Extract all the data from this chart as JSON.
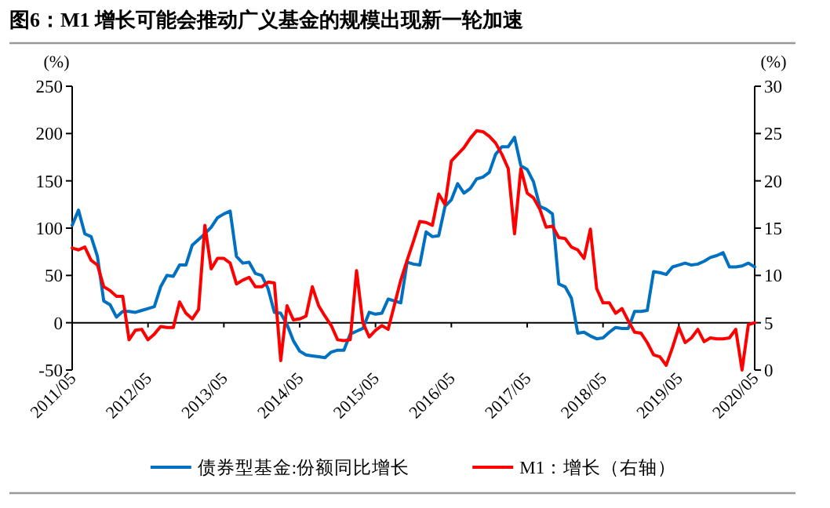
{
  "chart_data": {
    "type": "line",
    "title": "图6：M1 增长可能会推动广义基金的规模出现新一轮加速",
    "ylabel": "(%)",
    "y2label": "(%)",
    "legend": "bottom",
    "x": [
      "2011-05",
      "2011-06",
      "2011-07",
      "2011-08",
      "2011-09",
      "2011-10",
      "2011-11",
      "2011-12",
      "2012-01",
      "2012-02",
      "2012-03",
      "2012-04",
      "2012-05",
      "2012-06",
      "2012-07",
      "2012-08",
      "2012-09",
      "2012-10",
      "2012-11",
      "2012-12",
      "2013-01",
      "2013-02",
      "2013-03",
      "2013-04",
      "2013-05",
      "2013-06",
      "2013-07",
      "2013-08",
      "2013-09",
      "2013-10",
      "2013-11",
      "2013-12",
      "2014-01",
      "2014-02",
      "2014-03",
      "2014-04",
      "2014-05",
      "2014-06",
      "2014-07",
      "2014-08",
      "2014-09",
      "2014-10",
      "2014-11",
      "2014-12",
      "2015-01",
      "2015-02",
      "2015-03",
      "2015-04",
      "2015-05",
      "2015-06",
      "2015-07",
      "2015-08",
      "2015-09",
      "2015-10",
      "2015-11",
      "2015-12",
      "2016-01",
      "2016-02",
      "2016-03",
      "2016-04",
      "2016-05",
      "2016-06",
      "2016-07",
      "2016-08",
      "2016-09",
      "2016-10",
      "2016-11",
      "2016-12",
      "2017-01",
      "2017-02",
      "2017-03",
      "2017-04",
      "2017-05",
      "2017-06",
      "2017-07",
      "2017-08",
      "2017-09",
      "2017-10",
      "2017-11",
      "2017-12",
      "2018-01",
      "2018-02",
      "2018-03",
      "2018-04",
      "2018-05",
      "2018-06",
      "2018-07",
      "2018-08",
      "2018-09",
      "2018-10",
      "2018-11",
      "2018-12",
      "2019-01",
      "2019-02",
      "2019-03",
      "2019-04",
      "2019-05",
      "2019-06",
      "2019-07",
      "2019-08",
      "2019-09",
      "2019-10",
      "2019-11",
      "2019-12",
      "2020-01",
      "2020-02",
      "2020-03",
      "2020-04",
      "2020-05"
    ],
    "xlim": [
      "2011-05",
      "2020-05"
    ],
    "xticks": [
      {
        "value": "2011-05",
        "label": "2011/05"
      },
      {
        "value": "2012-05",
        "label": "2012/05"
      },
      {
        "value": "2013-05",
        "label": "2013/05"
      },
      {
        "value": "2014-05",
        "label": "2014/05"
      },
      {
        "value": "2015-05",
        "label": "2015/05"
      },
      {
        "value": "2016-05",
        "label": "2016/05"
      },
      {
        "value": "2017-05",
        "label": "2017/05"
      },
      {
        "value": "2018-05",
        "label": "2018/05"
      },
      {
        "value": "2019-05",
        "label": "2019/05"
      },
      {
        "value": "2020-05",
        "label": "2020/05"
      }
    ],
    "ylim": [
      -50,
      250
    ],
    "yticks": [
      -50,
      0,
      50,
      100,
      150,
      200,
      250
    ],
    "y2lim": [
      0,
      30
    ],
    "y2ticks": [
      0,
      5,
      10,
      15,
      20,
      25,
      30
    ],
    "series": [
      {
        "name": "债券型基金:份额同比增长",
        "color": "#0070c0",
        "values": [
          103,
          119,
          94,
          91,
          70,
          23,
          19,
          6,
          12,
          12,
          11,
          13,
          15,
          17,
          38,
          50,
          49,
          61,
          61,
          82,
          88,
          94,
          101,
          111,
          115,
          118,
          70,
          63,
          64,
          52,
          50,
          36,
          11,
          10,
          -2,
          -19,
          -30,
          -34,
          -35,
          -36,
          -37,
          -31,
          -29,
          -29,
          -12,
          -9,
          -6,
          11,
          9,
          10,
          25,
          23,
          21,
          64,
          62,
          61,
          96,
          91,
          92,
          123,
          130,
          147,
          137,
          142,
          152,
          154,
          159,
          178,
          186,
          186,
          196,
          166,
          162,
          149,
          123,
          120,
          115,
          41,
          38,
          26,
          -11,
          -10,
          -14,
          -17,
          -16,
          -10,
          -5,
          -6,
          -6,
          12,
          12,
          13,
          54,
          53,
          51,
          59,
          61,
          63,
          61,
          62,
          65,
          69,
          71,
          74,
          59,
          59,
          60,
          63,
          59
        ]
      },
      {
        "name": "M1：增长（右轴）",
        "color": "#ff0000",
        "axis": "y2",
        "values": [
          12.9,
          12.7,
          13.0,
          11.6,
          11.1,
          8.8,
          8.4,
          7.8,
          7.8,
          3.2,
          4.2,
          4.3,
          3.2,
          3.8,
          4.6,
          4.5,
          4.5,
          7.2,
          6.0,
          5.4,
          6.4,
          15.3,
          10.7,
          11.8,
          11.8,
          11.3,
          9.1,
          9.5,
          9.8,
          8.8,
          8.8,
          9.3,
          9.2,
          1.0,
          6.8,
          5.3,
          5.4,
          5.7,
          8.8,
          6.8,
          5.7,
          4.7,
          3.2,
          3.1,
          3.2,
          10.5,
          5.0,
          3.5,
          4.2,
          4.7,
          4.3,
          6.9,
          9.5,
          11.6,
          13.6,
          15.7,
          15.6,
          15.3,
          18.6,
          17.5,
          22.1,
          22.8,
          23.5,
          24.5,
          25.3,
          25.2,
          24.7,
          24.0,
          22.8,
          21.3,
          14.4,
          21.3,
          18.7,
          18.2,
          17.0,
          15.1,
          15.2,
          14.0,
          13.9,
          13.0,
          12.7,
          11.8,
          14.9,
          8.6,
          7.1,
          7.1,
          6.0,
          6.5,
          5.2,
          4.0,
          3.9,
          2.9,
          1.6,
          1.4,
          0.5,
          2.4,
          4.5,
          2.9,
          3.4,
          4.3,
          3.0,
          3.4,
          3.3,
          3.3,
          3.4,
          4.3,
          0.0,
          4.8,
          5.0
        ]
      }
    ]
  }
}
